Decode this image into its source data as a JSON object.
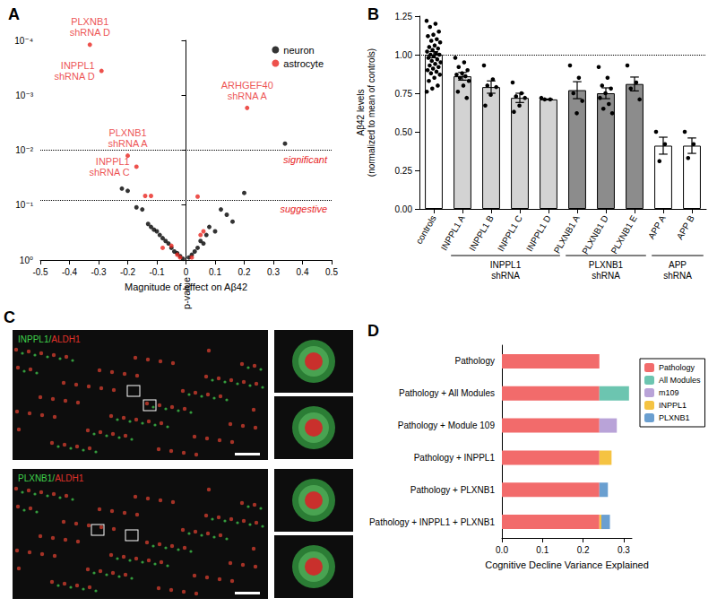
{
  "chart_data": [
    {
      "type": "scatter",
      "title": "A",
      "x_label": "Magnitude of effect on Aβ42",
      "y_label": "p-value",
      "xlim": [
        -0.5,
        0.5
      ],
      "xticks": [
        -0.5,
        -0.4,
        -0.3,
        -0.2,
        -0.1,
        0,
        0.1,
        0.2,
        0.3,
        0.4,
        0.5
      ],
      "ylim": [
        1,
        0.0001
      ],
      "yticks": [
        {
          "value": 0.0001,
          "label": "10⁻⁴"
        },
        {
          "value": 0.001,
          "label": "10⁻³"
        },
        {
          "value": 0.01,
          "label": "10⁻²"
        },
        {
          "value": 0.1,
          "label": "10⁻¹"
        },
        {
          "value": 1,
          "label": "10⁰"
        }
      ],
      "log": "y",
      "grid": false,
      "legend": "top right",
      "thresholds": [
        {
          "value": 0.007,
          "label": "significant"
        },
        {
          "value": 0.08,
          "label": "suggestive"
        }
      ],
      "series": [
        {
          "name": "neuron",
          "color": "#000000",
          "marker": "circle",
          "values": [
            {
              "x": 0.34,
              "y": 0.0076
            },
            {
              "x": 0.2,
              "y": 0.06
            },
            {
              "x": 0.16,
              "y": 0.2
            },
            {
              "x": 0.14,
              "y": 0.15
            },
            {
              "x": 0.12,
              "y": 0.12
            },
            {
              "x": 0.1,
              "y": 0.3
            },
            {
              "x": 0.08,
              "y": 0.25
            },
            {
              "x": 0.07,
              "y": 0.35
            },
            {
              "x": 0.06,
              "y": 0.5
            },
            {
              "x": 0.05,
              "y": 0.45
            },
            {
              "x": 0.04,
              "y": 0.6
            },
            {
              "x": 0.03,
              "y": 0.7
            },
            {
              "x": 0.02,
              "y": 0.8
            },
            {
              "x": 0.01,
              "y": 0.9
            },
            {
              "x": -0.01,
              "y": 0.95
            },
            {
              "x": -0.02,
              "y": 0.85
            },
            {
              "x": -0.03,
              "y": 0.75
            },
            {
              "x": -0.04,
              "y": 0.7
            },
            {
              "x": -0.05,
              "y": 0.6
            },
            {
              "x": -0.06,
              "y": 0.5
            },
            {
              "x": -0.07,
              "y": 0.45
            },
            {
              "x": -0.08,
              "y": 0.4
            },
            {
              "x": -0.09,
              "y": 0.35
            },
            {
              "x": -0.1,
              "y": 0.3
            },
            {
              "x": -0.11,
              "y": 0.28
            },
            {
              "x": -0.12,
              "y": 0.25
            },
            {
              "x": -0.13,
              "y": 0.22
            },
            {
              "x": -0.15,
              "y": 0.12
            },
            {
              "x": -0.17,
              "y": 0.11
            },
            {
              "x": -0.2,
              "y": 0.055
            },
            {
              "x": -0.22,
              "y": 0.05
            }
          ]
        },
        {
          "name": "astrocyte",
          "color": "#e8251f",
          "marker": "circle",
          "values": [
            {
              "x": -0.33,
              "y": 0.00012,
              "label": "PLXNB1\nshRNA D"
            },
            {
              "x": -0.29,
              "y": 0.00036,
              "label": "INPPL1\nshRNA D"
            },
            {
              "x": 0.21,
              "y": 0.0017,
              "label": "ARHGEF40\nshRNA A"
            },
            {
              "x": -0.2,
              "y": 0.0126,
              "label": "PLXNB1\nshRNA A"
            },
            {
              "x": -0.17,
              "y": 0.02,
              "label": "INPPL1\nshRNA C"
            },
            {
              "x": -0.14,
              "y": 0.068
            },
            {
              "x": -0.12,
              "y": 0.068
            },
            {
              "x": 0.04,
              "y": 0.07
            },
            {
              "x": -0.08,
              "y": 0.6
            },
            {
              "x": -0.05,
              "y": 0.55
            },
            {
              "x": -0.03,
              "y": 0.8
            },
            {
              "x": -0.02,
              "y": 0.9
            },
            {
              "x": 0.02,
              "y": 0.9
            },
            {
              "x": 0.05,
              "y": 0.35
            },
            {
              "x": 0.06,
              "y": 0.3
            }
          ]
        }
      ]
    },
    {
      "type": "bar",
      "title": "B",
      "y_label": "Aβ42 levels\n(normalized to mean of controls)",
      "categories": [
        "controls",
        "INPPL1 A",
        "INPPL1 B",
        "INPPL1 C",
        "INPPL1 D",
        "PLXNB1 A",
        "PLXNB1 D",
        "PLXNB1 E",
        "APP A",
        "APP B"
      ],
      "values": [
        1.0,
        0.86,
        0.79,
        0.72,
        0.71,
        0.77,
        0.75,
        0.81,
        0.41,
        0.41
      ],
      "errors": [
        0.02,
        0.025,
        0.04,
        0.03,
        0.003,
        0.055,
        0.035,
        0.045,
        0.055,
        0.05
      ],
      "colors": [
        "#ffffff",
        "#d3d3d3",
        "#d3d3d3",
        "#d3d3d3",
        "#d3d3d3",
        "#8c8c8c",
        "#8c8c8c",
        "#8c8c8c",
        "#ffffff",
        "#ffffff"
      ],
      "points": [
        [
          1.22,
          1.2,
          1.18,
          1.15,
          1.13,
          1.12,
          1.1,
          1.09,
          1.08,
          1.06,
          1.05,
          1.04,
          1.03,
          1.02,
          1.01,
          1.0,
          1.0,
          0.99,
          0.98,
          0.97,
          0.96,
          0.95,
          0.94,
          0.93,
          0.92,
          0.91,
          0.9,
          0.89,
          0.88,
          0.87,
          0.85,
          0.83,
          0.8,
          0.78,
          0.76
        ],
        [
          0.98,
          0.95,
          0.92,
          0.9,
          0.88,
          0.87,
          0.86,
          0.85,
          0.83,
          0.8,
          0.76,
          0.72
        ],
        [
          0.93,
          0.84,
          0.8,
          0.79,
          0.74,
          0.67
        ],
        [
          0.82,
          0.75,
          0.73,
          0.72,
          0.67,
          0.63
        ],
        [
          0.72,
          0.71,
          0.71
        ],
        [
          0.93,
          0.85,
          0.75,
          0.7,
          0.62
        ],
        [
          0.92,
          0.85,
          0.8,
          0.78,
          0.75,
          0.72,
          0.68,
          0.65,
          0.62
        ],
        [
          0.93,
          0.82,
          0.78,
          0.71
        ],
        [
          0.5,
          0.42,
          0.31
        ],
        [
          0.5,
          0.42,
          0.33
        ]
      ],
      "ylim": [
        0,
        1.25
      ],
      "yticks": [
        {
          "value": 0,
          "label": "0.00"
        },
        {
          "value": 0.25,
          "label": "0.25"
        },
        {
          "value": 0.5,
          "label": "0.50"
        },
        {
          "value": 0.75,
          "label": "0.75"
        },
        {
          "value": 1,
          "label": "1.00"
        },
        {
          "value": 1.25,
          "label": "1.25"
        }
      ],
      "reference_line": 1,
      "grid": false,
      "groups": [
        {
          "label": "INPPL1\nshRNA",
          "from": "INPPL1 A",
          "to": "INPPL1 D"
        },
        {
          "label": "PLXNB1\nshRNA",
          "from": "PLXNB1 A",
          "to": "PLXNB1 E"
        },
        {
          "label": "APP\nshRNA",
          "from": "APP A",
          "to": "APP B"
        }
      ]
    },
    {
      "type": "bar",
      "title": "D",
      "orientation": "horizontal",
      "stacked": true,
      "x_label": "Cognitive Decline Variance Explained",
      "categories": [
        "Pathology",
        "Pathology + All Modules",
        "Pathology + Module 109",
        "Pathology + INPPL1",
        "Pathology + PLXNB1",
        "Pathology + INPPL1 + PLXNB1"
      ],
      "xlim": [
        0,
        0.32
      ],
      "xticks": [
        {
          "value": 0,
          "label": "0.0"
        },
        {
          "value": 0.1,
          "label": "0.1"
        },
        {
          "value": 0.2,
          "label": "0.2"
        },
        {
          "value": 0.3,
          "label": "0.3"
        }
      ],
      "grid": false,
      "legend": "right",
      "series": [
        {
          "name": "Pathology",
          "color": "#f26b6b",
          "values": [
            0.24,
            0.24,
            0.24,
            0.24,
            0.24,
            0.24
          ]
        },
        {
          "name": "All Modules",
          "color": "#6cc5b0",
          "values": [
            null,
            0.073,
            null,
            null,
            null,
            null
          ]
        },
        {
          "name": "m109",
          "color": "#b9a3d8",
          "values": [
            null,
            null,
            0.043,
            null,
            null,
            null
          ]
        },
        {
          "name": "INPPL1",
          "color": "#f5c342",
          "values": [
            null,
            null,
            null,
            0.03,
            null,
            0.005
          ]
        },
        {
          "name": "PLXNB1",
          "color": "#6a9fd0",
          "values": [
            null,
            null,
            null,
            null,
            0.021,
            0.021
          ]
        }
      ]
    }
  ],
  "panel_c": {
    "title": "C",
    "images": [
      {
        "label": [
          "INPPL1",
          "/",
          "ALDH1"
        ]
      },
      {
        "label": [
          "PLXNB1",
          "/",
          "ALDH1"
        ]
      }
    ]
  }
}
